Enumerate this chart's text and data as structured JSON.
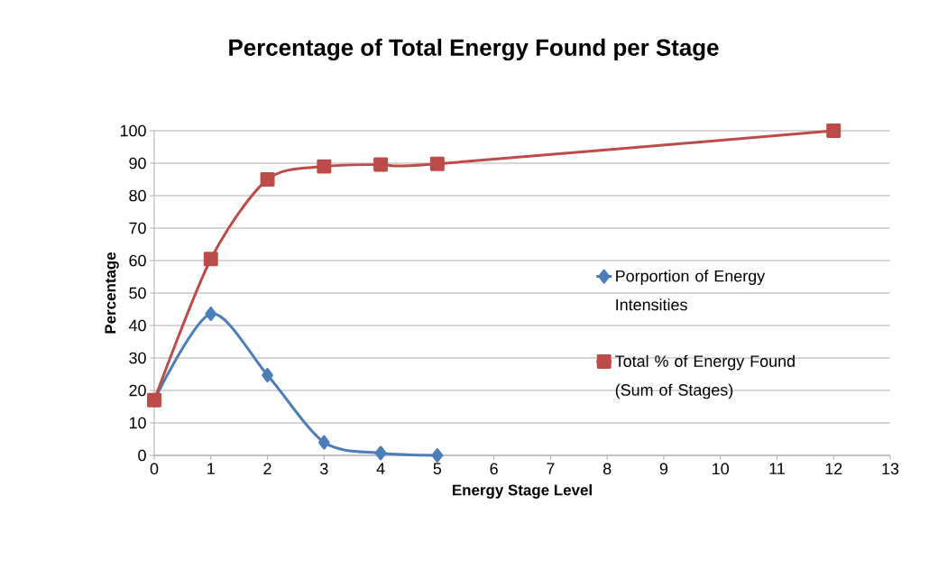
{
  "chart_data": {
    "type": "line",
    "title": "Percentage of Total Energy Found per Stage",
    "xlabel": "Energy Stage Level",
    "ylabel": "Percentage",
    "xlim": [
      0,
      13
    ],
    "xticks": [
      0,
      1,
      2,
      3,
      4,
      5,
      6,
      7,
      8,
      9,
      10,
      11,
      12,
      13
    ],
    "ylim": [
      0,
      100
    ],
    "yticks": [
      0,
      10,
      20,
      30,
      40,
      50,
      60,
      70,
      80,
      90,
      100
    ],
    "grid": "y",
    "legend": "right",
    "series": [
      {
        "name": "Porportion of Energy Intensities",
        "color": "#4a7ebb",
        "marker": "diamond",
        "x": [
          0,
          1,
          2,
          3,
          4,
          5
        ],
        "values": [
          17,
          43.6,
          24.7,
          4,
          0.7,
          0
        ]
      },
      {
        "name": "Total % of Energy Found (Sum of Stages)",
        "color": "#be4b48",
        "marker": "square",
        "x": [
          0,
          1,
          2,
          3,
          4,
          5,
          12
        ],
        "values": [
          17,
          60.5,
          85,
          89,
          89.6,
          89.8,
          100
        ]
      }
    ]
  }
}
